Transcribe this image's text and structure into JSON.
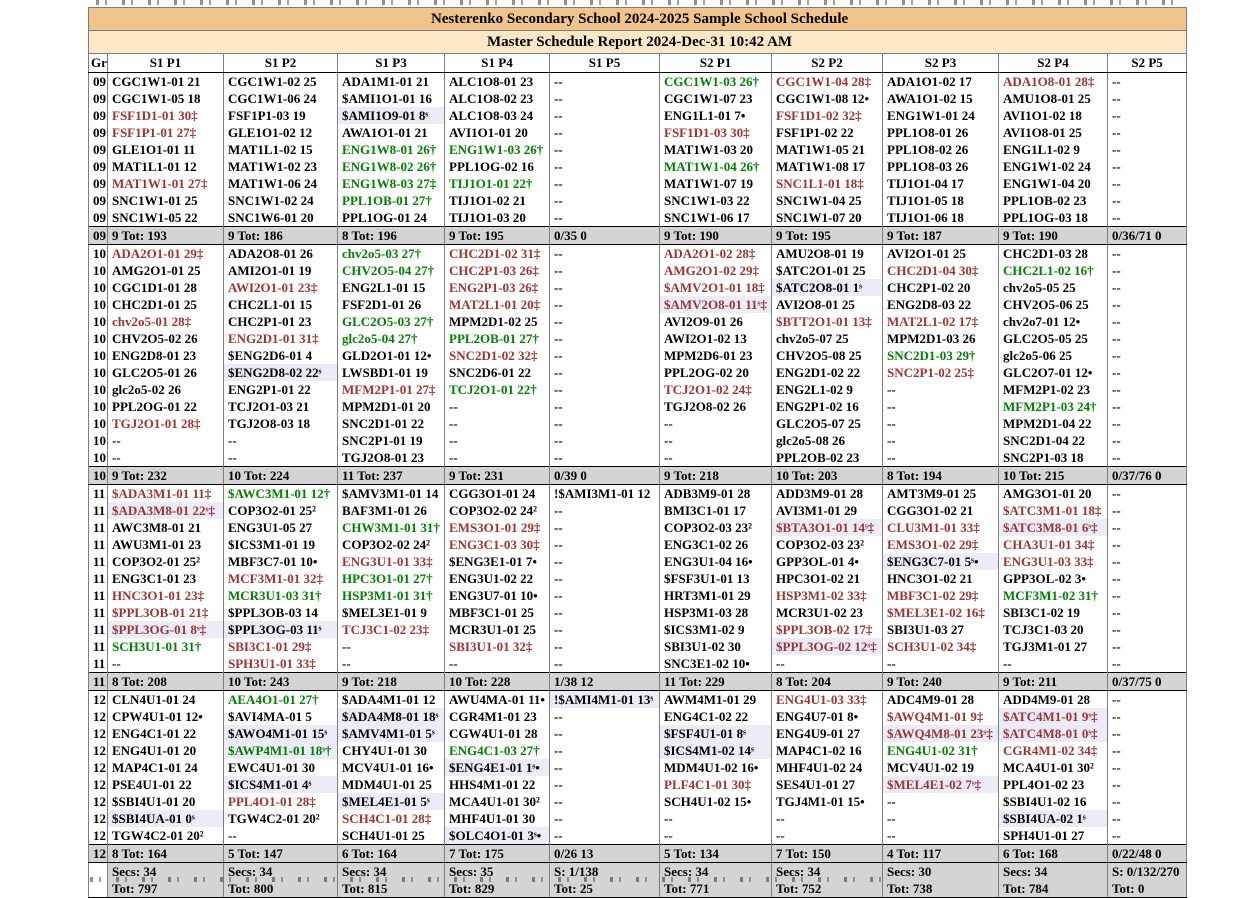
{
  "colors": {
    "flag_over": "#9b3432",
    "flag_good": "#008000",
    "shaded_bg": "#ececf8",
    "title_bg": "#f1c48c",
    "subtitle_bg": "#fce7c6",
    "totals_bg": "#d4d4d4"
  },
  "header": {
    "title": "Nesterenko Secondary School     2024-2025 Sample School Schedule",
    "subtitle": "Master Schedule Report       2024-Dec-31 10:42 AM"
  },
  "columns": [
    "Gr",
    "S1 P1",
    "S1 P2",
    "S1 P3",
    "S1 P4",
    "S1 P5",
    "S2 P1",
    "S2 P2",
    "S2 P3",
    "S2 P4",
    "S2 P5"
  ],
  "grades": [
    {
      "grade": "09",
      "rows": [
        [
          "k|CGC1W1-01 21",
          "k|CGC1W1-02 25",
          "k|ADA1M1-01 21",
          "k|ALC1O8-01 23",
          "k|--",
          "g|CGC1W1-03 26†",
          "r|CGC1W1-04 28‡",
          "k|ADA1O1-02 17",
          "r|ADA1O8-01 28‡",
          "k|--"
        ],
        [
          "k|CGC1W1-05 18",
          "k|CGC1W1-06 24",
          "k|$AMI1O1-01 16",
          "k|ALC1O8-02 23",
          "k|--",
          "k|CGC1W1-07 23",
          "k|CGC1W1-08 12•",
          "k|AWA1O1-02 15",
          "k|AMU1O8-01 25",
          "k|--"
        ],
        [
          "r|FSF1D1-01 30‡",
          "k|FSF1P1-03 19",
          "ks|$AMI1O9-01 8ˢ",
          "k|ALC1O8-03 24",
          "k|--",
          "k|ENG1L1-01 7•",
          "r|FSF1D1-02 32‡",
          "k|ENG1W1-01 24",
          "k|AVI1O1-02 18",
          "k|--"
        ],
        [
          "r|FSF1P1-01 27‡",
          "k|GLE1O1-02 12",
          "k|AWA1O1-01 21",
          "k|AVI1O1-01 20",
          "k|--",
          "r|FSF1D1-03 30‡",
          "k|FSF1P1-02 22",
          "k|PPL1O8-01 26",
          "k|AVI1O8-01 25",
          "k|--"
        ],
        [
          "k|GLE1O1-01 11",
          "k|MAT1L1-02 15",
          "g|ENG1W8-01 26†",
          "g|ENG1W1-03 26†",
          "k|--",
          "k|MAT1W1-03 20",
          "k|MAT1W1-05 21",
          "k|PPL1O8-02 26",
          "k|ENG1L1-02 9",
          "k|--"
        ],
        [
          "k|MAT1L1-01 12",
          "k|MAT1W1-02 23",
          "g|ENG1W8-02 26†",
          "k|PPL1OG-02 16",
          "k|--",
          "g|MAT1W1-04 26†",
          "k|MAT1W1-08 17",
          "k|PPL1O8-03 26",
          "k|ENG1W1-02 24",
          "k|--"
        ],
        [
          "r|MAT1W1-01 27‡",
          "k|MAT1W1-06 24",
          "g|ENG1W8-03 27‡",
          "g|TIJ1O1-01 22†",
          "k|--",
          "k|MAT1W1-07 19",
          "r|SNC1L1-01 18‡",
          "k|TIJ1O1-04 17",
          "k|ENG1W1-04 20",
          "k|--"
        ],
        [
          "k|SNC1W1-01 25",
          "k|SNC1W1-02 24",
          "g|PPL1OB-01 27†",
          "k|TIJ1O1-02 21",
          "k|--",
          "k|SNC1W1-03 22",
          "k|SNC1W1-04 25",
          "k|TIJ1O1-05 18",
          "k|PPL1OB-02 23",
          "k|--"
        ],
        [
          "k|SNC1W1-05 22",
          "k|SNC1W6-01 20",
          "k|PPL1OG-01 24",
          "k|TIJ1O1-03 20",
          "k|--",
          "k|SNC1W1-06 17",
          "k|SNC1W1-07 20",
          "k|TIJ1O1-06 18",
          "k|PPL1OG-03 18",
          "k|--"
        ]
      ],
      "totals": [
        "9 Tot: 193",
        "9 Tot: 186",
        "8 Tot: 196",
        "9 Tot: 195",
        "0/35 0",
        "9 Tot: 190",
        "9 Tot: 195",
        "9 Tot: 187",
        "9 Tot: 190",
        "0/36/71 0"
      ]
    },
    {
      "grade": "10",
      "rows": [
        [
          "r|ADA2O1-01 29‡",
          "k|ADA2O8-01 26",
          "g|chv2o5-03 27†",
          "r|CHC2D1-02 31‡",
          "k|--",
          "r|ADA2O1-02 28‡",
          "k|AMU2O8-01 19",
          "k|AVI2O1-01 25",
          "k|CHC2D1-03 28",
          "k|--"
        ],
        [
          "k|AMG2O1-01 25",
          "k|AMI2O1-01 19",
          "g|CHV2O5-04 27†",
          "r|CHC2P1-03 26‡",
          "k|--",
          "r|AMG2O1-02 29‡",
          "k|$ATC2O1-01 25",
          "r|CHC2D1-04 30‡",
          "g|CHC2L1-02 16†",
          "k|--"
        ],
        [
          "k|CGC1D1-01 28",
          "r|AWI2O1-01 23‡",
          "k|ENG2L1-01 15",
          "r|ENG2P1-03 26‡",
          "k|--",
          "r|$AMV2O1-01 18‡",
          "ks|$ATC2O8-01 1ˢ",
          "k|CHC2P1-02 20",
          "k|chv2o5-05 25",
          "k|--"
        ],
        [
          "k|CHC2D1-01 25",
          "k|CHC2L1-01 15",
          "k|FSF2D1-01 26",
          "r|MAT2L1-01 20‡",
          "k|--",
          "rs|$AMV2O8-01 11ˢ‡",
          "k|AVI2O8-01 25",
          "k|ENG2D8-03 22",
          "k|CHV2O5-06 25",
          "k|--"
        ],
        [
          "r|chv2o5-01 28‡",
          "k|CHC2P1-01 23",
          "g|GLC2O5-03 27†",
          "k|MPM2D1-02 25",
          "k|--",
          "k|AVI2O9-01 26",
          "r|$BTT2O1-01 13‡",
          "r|MAT2L1-02 17‡",
          "k|chv2o7-01 12•",
          "k|--"
        ],
        [
          "k|CHV2O5-02 26",
          "r|ENG2D1-01 31‡",
          "g|glc2o5-04 27†",
          "g|PPL2OB-01 27†",
          "k|--",
          "k|AWI2O1-02 13",
          "k|chv2o5-07 25",
          "k|MPM2D1-03 26",
          "k|GLC2O5-05 25",
          "k|--"
        ],
        [
          "k|ENG2D8-01 23",
          "k|$ENG2D6-01 4",
          "k|GLD2O1-01 12•",
          "r|SNC2D1-02 32‡",
          "k|--",
          "k|MPM2D6-01 23",
          "k|CHV2O5-08 25",
          "g|SNC2D1-03 29†",
          "k|glc2o5-06 25",
          "k|--"
        ],
        [
          "k|GLC2O5-01 26",
          "ks|$ENG2D8-02 22ˢ",
          "k|LWSBD1-01 19",
          "k|SNC2D6-01 22",
          "k|--",
          "k|PPL2OG-02 20",
          "k|ENG2D1-02 22",
          "r|SNC2P1-02 25‡",
          "k|GLC2O7-01 12•",
          "k|--"
        ],
        [
          "k|glc2o5-02 26",
          "k|ENG2P1-01 22",
          "r|MFM2P1-01 27‡",
          "g|TCJ2O1-01 22†",
          "k|--",
          "r|TCJ2O1-02 24‡",
          "k|ENG2L1-02 9",
          "k|--",
          "k|MFM2P1-02 23",
          "k|--"
        ],
        [
          "k|PPL2OG-01 22",
          "k|TCJ2O1-03 21",
          "k|MPM2D1-01 20",
          "k|--",
          "k|--",
          "k|TGJ2O8-02 26",
          "k|ENG2P1-02 16",
          "k|--",
          "g|MFM2P1-03 24†",
          "k|--"
        ],
        [
          "r|TGJ2O1-01 28‡",
          "k|TGJ2O8-03 18",
          "k|SNC2D1-01 22",
          "k|--",
          "k|--",
          "k|--",
          "k|GLC2O5-07 25",
          "k|--",
          "k|MPM2D1-04 22",
          "k|--"
        ],
        [
          "k|--",
          "k|--",
          "k|SNC2P1-01 19",
          "k|--",
          "k|--",
          "k|--",
          "k|glc2o5-08 26",
          "k|--",
          "k|SNC2D1-04 22",
          "k|--"
        ],
        [
          "k|--",
          "k|--",
          "k|TGJ2O8-01 23",
          "k|--",
          "k|--",
          "k|--",
          "k|PPL2OB-02 23",
          "k|--",
          "k|SNC2P1-03 18",
          "k|--"
        ]
      ],
      "totals": [
        "9 Tot: 232",
        "10 Tot: 224",
        "11 Tot: 237",
        "9 Tot: 231",
        "0/39 0",
        "9 Tot: 218",
        "10 Tot: 203",
        "8 Tot: 194",
        "10 Tot: 215",
        "0/37/76 0"
      ]
    },
    {
      "grade": "11",
      "rows": [
        [
          "r|$ADA3M1-01 11‡",
          "g|$AWC3M1-01 12†",
          "k|$AMV3M1-01 14",
          "k|CGG3O1-01 24",
          "k|!$AMI3M1-01 12",
          "k|ADB3M9-01 28",
          "k|ADD3M9-01 28",
          "k|AMT3M9-01 25",
          "k|AMG3O1-01 20",
          "k|--"
        ],
        [
          "rs|$ADA3M8-01 22ˢ‡",
          "k|COP3O2-01 25²",
          "k|BAF3M1-01 26",
          "k|COP3O2-02 24²",
          "k|--",
          "k|BMI3C1-01 17",
          "k|AVI3M1-01 29",
          "k|CGG3O1-02 21",
          "r|$ATC3M1-01 18‡",
          "k|--"
        ],
        [
          "k|AWC3M8-01 21",
          "k|ENG3U1-05 27",
          "g|CHW3M1-01 31†",
          "r|EMS3O1-01 29‡",
          "k|--",
          "k|COP3O2-03 23²",
          "rs|$BTA3O1-01 14ˢ‡",
          "r|CLU3M1-01 33‡",
          "rs|$ATC3M8-01 6ˢ‡",
          "k|--"
        ],
        [
          "k|AWU3M1-01 23",
          "k|$ICS3M1-01 19",
          "k|COP3O2-02 24²",
          "r|ENG3C1-03 30‡",
          "k|--",
          "k|ENG3C1-02 26",
          "k|COP3O2-03 23²",
          "r|EMS3O1-02 29‡",
          "r|CHA3U1-01 34‡",
          "k|--"
        ],
        [
          "k|COP3O2-01 25²",
          "k|MBF3C7-01 10•",
          "r|ENG3U1-01 33‡",
          "k|$ENG3E1-01 7•",
          "k|--",
          "k|ENG3U1-04 16•",
          "k|GPP3OL-01 4•",
          "ks|$ENG3C7-01 5ˢ•",
          "r|ENG3U1-03 33‡",
          "k|--"
        ],
        [
          "k|ENG3C1-01 23",
          "r|MCF3M1-01 32‡",
          "g|HPC3O1-01 27†",
          "k|ENG3U1-02 22",
          "k|--",
          "k|$FSF3U1-01 13",
          "k|HPC3O1-02 21",
          "k|HNC3O1-02 21",
          "k|GPP3OL-02 3•",
          "k|--"
        ],
        [
          "r|HNC3O1-01 23‡",
          "g|MCR3U1-03 31†",
          "g|HSP3M1-01 31†",
          "k|ENG3U7-01 10•",
          "k|--",
          "k|HRT3M1-01 29",
          "r|HSP3M1-02 33‡",
          "r|MBF3C1-02 29‡",
          "g|MCF3M1-02 31†",
          "k|--"
        ],
        [
          "r|$PPL3OB-01 21‡",
          "k|$PPL3OB-03 14",
          "k|$MEL3E1-01 9",
          "k|MBF3C1-01 25",
          "k|--",
          "k|HSP3M1-03 28",
          "k|MCR3U1-02 23",
          "r|$MEL3E1-02 16‡",
          "k|SBI3C1-02 19",
          "k|--"
        ],
        [
          "rs|$PPL3OG-01 8ˢ‡",
          "ks|$PPL3OG-03 11ˢ",
          "r|TCJ3C1-02 23‡",
          "k|MCR3U1-01 25",
          "k|--",
          "k|$ICS3M1-02 9",
          "r|$PPL3OB-02 17‡",
          "k|SBI3U1-03 27",
          "k|TCJ3C1-03 20",
          "k|--"
        ],
        [
          "g|SCH3U1-01 31†",
          "r|SBI3C1-01 29‡",
          "k|--",
          "r|SBI3U1-01 32‡",
          "k|--",
          "k|SBI3U1-02 30",
          "rs|$PPL3OG-02 12ˢ‡",
          "r|SCH3U1-02 34‡",
          "k|TGJ3M1-01 27",
          "k|--"
        ],
        [
          "k|--",
          "r|SPH3U1-01 33‡",
          "k|--",
          "k|--",
          "k|--",
          "k|SNC3E1-02 10•",
          "k|--",
          "k|--",
          "k|--",
          "k|--"
        ]
      ],
      "totals": [
        "8 Tot: 208",
        "10 Tot: 243",
        "9 Tot: 218",
        "10 Tot: 228",
        "1/38 12",
        "11 Tot: 229",
        "8 Tot: 204",
        "9 Tot: 240",
        "9 Tot: 211",
        "0/37/75 0"
      ]
    },
    {
      "grade": "12",
      "rows": [
        [
          "k|CLN4U1-01 24",
          "g|AEA4O1-01 27†",
          "k|$ADA4M1-01 12",
          "k|AWU4MA-01 11•",
          "ks|!$AMI4M1-01 13ˢ",
          "k|AWM4M1-01 29",
          "r|ENG4U1-03 33‡",
          "k|ADC4M9-01 28",
          "k|ADD4M9-01 28",
          "k|--"
        ],
        [
          "k|CPW4U1-01 12•",
          "k|$AVI4MA-01 5",
          "ks|$ADA4M8-01 18ˢ",
          "k|CGR4M1-01 23",
          "k|--",
          "k|ENG4C1-02 22",
          "k|ENG4U7-01 8•",
          "r|$AWQ4M1-01 9‡",
          "rs|$ATC4M1-01 9ˢ‡",
          "k|--"
        ],
        [
          "k|ENG4C1-01 22",
          "ks|$AWO4M1-01 15ˢ",
          "ks|$AMV4M1-01 5ˢ",
          "k|CGW4U1-01 28",
          "k|--",
          "ks|$FSF4U1-01 8ˢ",
          "k|ENG4U9-01 27",
          "rs|$AWQ4M8-01 23ˢ‡",
          "rs|$ATC4M8-01 0ˢ‡",
          "k|--"
        ],
        [
          "k|ENG4U1-01 20",
          "gs|$AWP4M1-01 18ˢ†",
          "k|CHY4U1-01 30",
          "g|ENG4C1-03 27†",
          "k|--",
          "ks|$ICS4M1-02 14ˢ",
          "k|MAP4C1-02 16",
          "g|ENG4U1-02 31†",
          "r|CGR4M1-02 34‡",
          "k|--"
        ],
        [
          "k|MAP4C1-01 24",
          "k|EWC4U1-01 30",
          "k|MCV4U1-01 16•",
          "ks|$ENG4E1-01 1ˢ•",
          "k|--",
          "k|MDM4U1-02 16•",
          "k|MHF4U1-02 24",
          "k|MCV4U1-02 19",
          "k|MCA4U1-01 30²",
          "k|--"
        ],
        [
          "k|PSE4U1-01 22",
          "ks|$ICS4M1-01 4ˢ",
          "k|MDM4U1-01 25",
          "k|HHS4M1-01 22",
          "k|--",
          "r|PLF4C1-01 30‡",
          "k|SES4U1-01 27",
          "rs|$MEL4E1-02 7ˢ‡",
          "k|PPL4O1-02 23",
          "k|--"
        ],
        [
          "k|$SBI4U1-01 20",
          "r|PPL4O1-01 28‡",
          "ks|$MEL4E1-01 5ˢ",
          "k|MCA4U1-01 30²",
          "k|--",
          "k|SCH4U1-02 15•",
          "k|TGJ4M1-01 15•",
          "k|--",
          "k|$SBI4U1-02 16",
          "k|--"
        ],
        [
          "ks|$SBI4UA-01 0ˢ",
          "k|TGW4C2-01 20²",
          "r|SCH4C1-01 28‡",
          "k|MHF4U1-01 30",
          "k|--",
          "k|--",
          "k|--",
          "k|--",
          "ks|$SBI4UA-02 1ˢ",
          "k|--"
        ],
        [
          "k|TGW4C2-01 20²",
          "k|--",
          "k|SCH4U1-01 25",
          "ks|$OLC4O1-01 3ˢ•",
          "k|--",
          "k|--",
          "k|--",
          "k|--",
          "k|SPH4U1-01 27",
          "k|--"
        ]
      ],
      "totals": [
        "8 Tot: 164",
        "5 Tot: 147",
        "6 Tot: 164",
        "7 Tot: 175",
        "0/26 13",
        "5 Tot: 134",
        "7 Tot: 150",
        "4 Tot: 117",
        "6 Tot: 168",
        "0/22/48 0"
      ]
    }
  ],
  "summary": {
    "secs": [
      "Secs: 34",
      "Secs: 34",
      "Secs: 34",
      "Secs: 35",
      "S: 1/138",
      "Secs: 34",
      "Secs: 34",
      "Secs: 30",
      "Secs: 34",
      "S: 0/132/270"
    ],
    "tot": [
      "Tot: 797",
      "Tot: 800",
      "Tot: 815",
      "Tot: 829",
      "Tot: 25",
      "Tot: 771",
      "Tot: 752",
      "Tot: 738",
      "Tot: 784",
      "Tot: 0"
    ]
  }
}
